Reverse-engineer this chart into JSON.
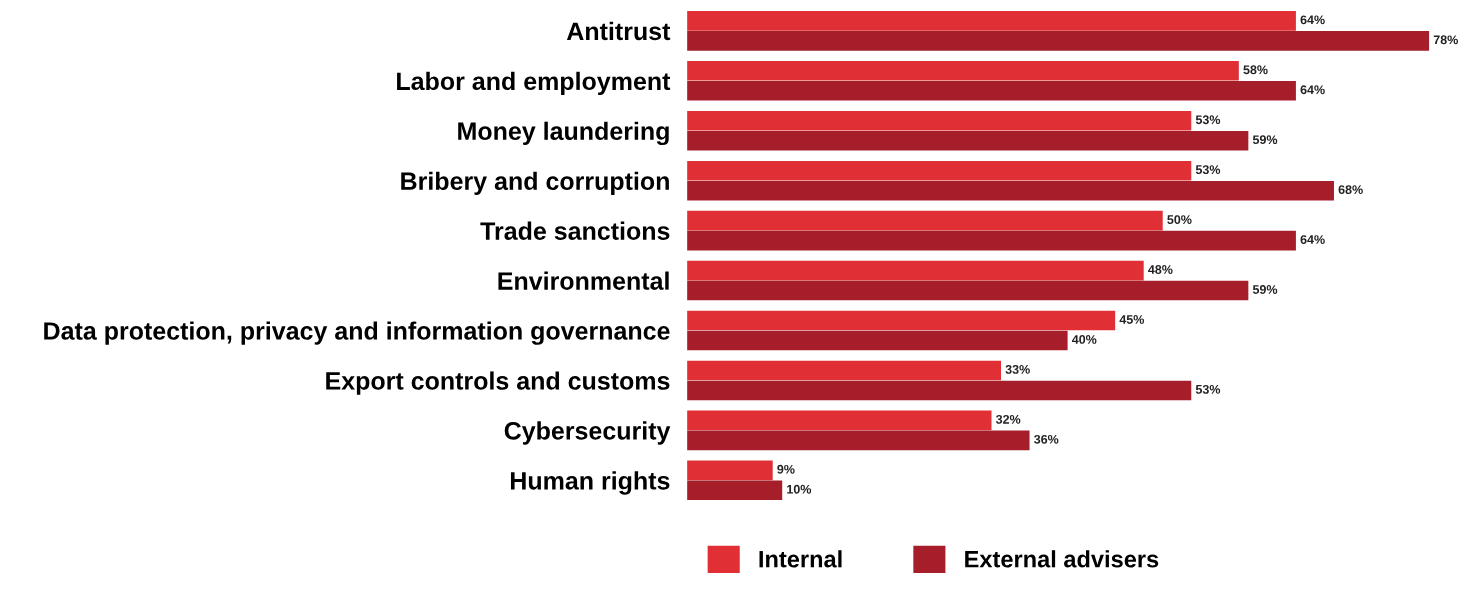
{
  "chart_data": {
    "type": "bar",
    "orientation": "horizontal",
    "tick_labels": "y",
    "legend": "bottom",
    "grid": false,
    "categories": [
      "Antitrust",
      "Labor and employment",
      "Money laundering",
      "Bribery and corruption",
      "Trade sanctions",
      "Environmental",
      "Data protection, privacy and information governance",
      "Export controls and customs",
      "Cybersecurity",
      "Human rights"
    ],
    "series": [
      {
        "name": "Internal",
        "color": "#e03035",
        "values": [
          64,
          58,
          53,
          53,
          50,
          48,
          45,
          33,
          32,
          9
        ],
        "value_labels": [
          "64%",
          "58%",
          "53%",
          "53%",
          "50%",
          "48%",
          "45%",
          "33%",
          "32%",
          "9%"
        ]
      },
      {
        "name": "External advisers",
        "color": "#a51e2a",
        "values": [
          78,
          64,
          59,
          68,
          64,
          59,
          40,
          53,
          36,
          10
        ],
        "value_labels": [
          "78%",
          "64%",
          "59%",
          "68%",
          "64%",
          "59%",
          "40%",
          "53%",
          "36%",
          "10%"
        ]
      }
    ]
  }
}
